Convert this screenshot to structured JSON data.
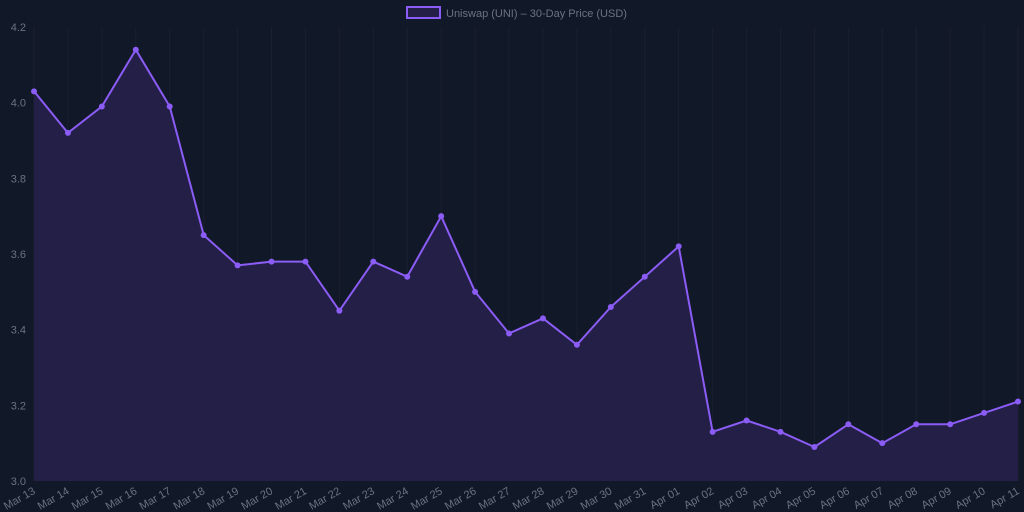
{
  "chart_data": {
    "type": "line",
    "title": "",
    "legend": [
      "Uniswap (UNI) – 30-Day Price (USD)"
    ],
    "legend_position": "top",
    "xlabel": "",
    "ylabel": "",
    "ylim": [
      3.0,
      4.2
    ],
    "yticks": [
      "3.0",
      "3.2",
      "3.4",
      "3.6",
      "3.8",
      "4.0",
      "4.2"
    ],
    "grid": true,
    "fill": true,
    "colors": {
      "line": "#8b5cf6",
      "fill": "#231f46",
      "background": "#111827",
      "text": "#6b7280"
    },
    "categories": [
      "Mar 13",
      "Mar 14",
      "Mar 15",
      "Mar 16",
      "Mar 17",
      "Mar 18",
      "Mar 19",
      "Mar 20",
      "Mar 21",
      "Mar 22",
      "Mar 23",
      "Mar 24",
      "Mar 25",
      "Mar 26",
      "Mar 27",
      "Mar 28",
      "Mar 29",
      "Mar 30",
      "Mar 31",
      "Apr 01",
      "Apr 02",
      "Apr 03",
      "Apr 04",
      "Apr 05",
      "Apr 06",
      "Apr 07",
      "Apr 08",
      "Apr 09",
      "Apr 10",
      "Apr 11"
    ],
    "series": [
      {
        "name": "Uniswap (UNI) – 30-Day Price (USD)",
        "values": [
          4.03,
          3.92,
          3.99,
          4.14,
          3.99,
          3.65,
          3.57,
          3.58,
          3.58,
          3.45,
          3.58,
          3.54,
          3.7,
          3.5,
          3.39,
          3.43,
          3.36,
          3.46,
          3.54,
          3.62,
          3.13,
          3.16,
          3.13,
          3.09,
          3.15,
          3.1,
          3.15,
          3.15,
          3.18,
          3.21
        ]
      }
    ]
  }
}
